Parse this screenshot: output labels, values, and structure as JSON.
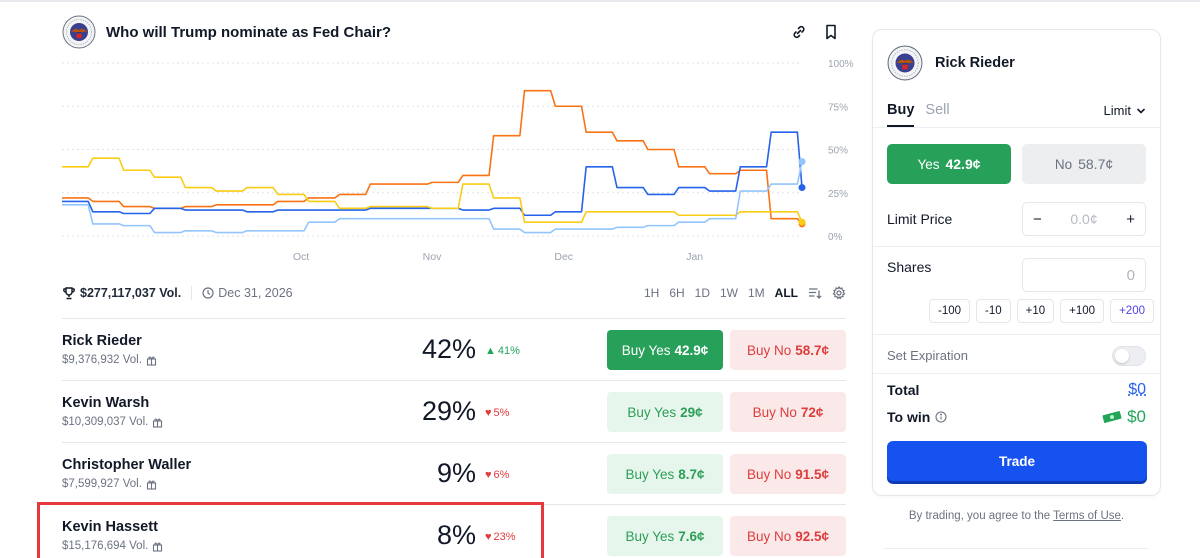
{
  "market": {
    "title": "Who will Trump nominate as Fed Chair?",
    "seal_icon": "federal-reserve-seal"
  },
  "stats": {
    "volume": "$277,117,037 Vol.",
    "end_date": "Dec 31, 2026",
    "ranges": [
      "1H",
      "6H",
      "1D",
      "1W",
      "1M",
      "ALL"
    ],
    "active_range": "ALL"
  },
  "chart_data": {
    "type": "line",
    "x_ticks": [
      "Oct",
      "Nov",
      "Dec",
      "Jan"
    ],
    "y_ticks": [
      "0%",
      "25%",
      "50%",
      "75%",
      "100%"
    ],
    "ylim": [
      0,
      100
    ],
    "grid": true,
    "series": [
      {
        "color": "#f97316",
        "values": [
          22,
          20,
          17,
          16,
          17,
          18,
          18,
          20,
          22,
          24,
          30,
          30,
          31,
          35,
          58,
          84,
          75,
          60,
          55,
          50,
          40,
          36,
          38,
          10,
          7
        ]
      },
      {
        "color": "#2563eb",
        "values": [
          20,
          14,
          13,
          16,
          15,
          15,
          14,
          15,
          15,
          15,
          16,
          16,
          16,
          15,
          16,
          12,
          14,
          40,
          28,
          24,
          28,
          26,
          40,
          60,
          28
        ]
      },
      {
        "color": "#facc15",
        "values": [
          40,
          45,
          38,
          34,
          28,
          26,
          28,
          24,
          20,
          16,
          17,
          17,
          16,
          30,
          22,
          8,
          8,
          14,
          14,
          14,
          12,
          12,
          14,
          14,
          8
        ]
      },
      {
        "color": "#93c5fd",
        "values": [
          18,
          7,
          6,
          2,
          3,
          2,
          3,
          3,
          8,
          10,
          10,
          10,
          10,
          10,
          4,
          2,
          4,
          4,
          5,
          6,
          8,
          10,
          26,
          30,
          43
        ]
      }
    ]
  },
  "outcomes": [
    {
      "name": "Rick Rieder",
      "volume": "$9,376,932 Vol.",
      "pct": "42%",
      "change": "41%",
      "direction": "up",
      "yes_label": "Buy Yes",
      "yes_price": "42.9¢",
      "no_label": "Buy No",
      "no_price": "58.7¢",
      "selected": true
    },
    {
      "name": "Kevin Warsh",
      "volume": "$10,309,037 Vol.",
      "pct": "29%",
      "change": "5%",
      "direction": "down",
      "yes_label": "Buy Yes",
      "yes_price": "29¢",
      "no_label": "Buy No",
      "no_price": "72¢",
      "selected": false
    },
    {
      "name": "Christopher Waller",
      "volume": "$7,599,927 Vol.",
      "pct": "9%",
      "change": "6%",
      "direction": "down",
      "yes_label": "Buy Yes",
      "yes_price": "8.7¢",
      "no_label": "Buy No",
      "no_price": "91.5¢",
      "selected": false
    },
    {
      "name": "Kevin Hassett",
      "volume": "$15,176,694 Vol.",
      "pct": "8%",
      "change": "23%",
      "direction": "down",
      "yes_label": "Buy Yes",
      "yes_price": "7.6¢",
      "no_label": "Buy No",
      "no_price": "92.5¢",
      "selected": false
    }
  ],
  "panel": {
    "candidate": "Rick Rieder",
    "tab_buy": "Buy",
    "tab_sell": "Sell",
    "order_type": "Limit",
    "yes_label": "Yes",
    "yes_price": "42.9¢",
    "no_label": "No",
    "no_price": "58.7¢",
    "limit_price_label": "Limit Price",
    "limit_price_value": "0.0¢",
    "minus": "−",
    "plus": "+",
    "shares_label": "Shares",
    "shares_placeholder": "0",
    "quick_amounts": [
      "-100",
      "-10",
      "+10",
      "+100",
      "+200"
    ],
    "set_expiration_label": "Set Expiration",
    "total_label": "Total",
    "total_value": "$0",
    "to_win_label": "To win",
    "to_win_value": "$0",
    "trade_label": "Trade",
    "terms_prefix": "By trading, you agree to the ",
    "terms_link": "Terms of Use",
    "terms_suffix": "."
  },
  "colors": {
    "yes_green": "#27a05a",
    "no_red": "#dc3d3d",
    "trade_blue": "#1652f0",
    "highlight_red": "#e5393d"
  }
}
